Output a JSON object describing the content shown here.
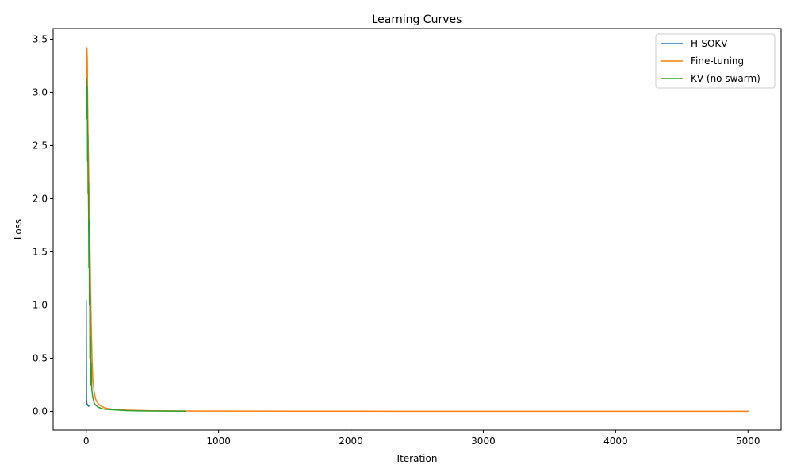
{
  "chart_data": {
    "type": "line",
    "title": "Learning Curves",
    "xlabel": "Iteration",
    "ylabel": "Loss",
    "xlim": [
      -250,
      5250
    ],
    "ylim": [
      -0.175,
      3.6
    ],
    "xticks": [
      0,
      1000,
      2000,
      3000,
      4000,
      5000
    ],
    "xtick_labels": [
      "0",
      "1000",
      "2000",
      "3000",
      "4000",
      "5000"
    ],
    "yticks": [
      0.0,
      0.5,
      1.0,
      1.5,
      2.0,
      2.5,
      3.0,
      3.5
    ],
    "ytick_labels": [
      "0.0",
      "0.5",
      "1.0",
      "1.5",
      "2.0",
      "2.5",
      "3.0",
      "3.5"
    ],
    "grid": false,
    "legend_position": "top-right",
    "series": [
      {
        "name": "H-SOKV",
        "color": "#1f77b4",
        "x": [
          0,
          2,
          4,
          6,
          8,
          10,
          12,
          14,
          16,
          18,
          20
        ],
        "y": [
          1.04,
          0.12,
          0.08,
          0.07,
          0.06,
          0.065,
          0.055,
          0.06,
          0.05,
          0.055,
          0.05
        ]
      },
      {
        "name": "Fine-tuning",
        "color": "#ff7f0e",
        "x": [
          0,
          5,
          8,
          10,
          14,
          18,
          22,
          26,
          30,
          35,
          40,
          45,
          50,
          60,
          70,
          80,
          100,
          120,
          150,
          200,
          300,
          500,
          750,
          1000,
          2000,
          3000,
          4000,
          5000
        ],
        "y": [
          2.8,
          3.42,
          3.3,
          3.0,
          2.6,
          2.3,
          2.0,
          1.7,
          1.4,
          1.0,
          0.7,
          0.45,
          0.3,
          0.18,
          0.12,
          0.09,
          0.06,
          0.045,
          0.03,
          0.02,
          0.012,
          0.006,
          0.004,
          0.003,
          0.002,
          0.001,
          0.001,
          0.001
        ]
      },
      {
        "name": "KV (no swarm)",
        "color": "#2ca02c",
        "x": [
          0,
          3,
          6,
          8,
          10,
          12,
          14,
          16,
          18,
          20,
          22,
          24,
          26,
          28,
          30,
          32,
          34,
          36,
          38,
          40,
          42,
          45,
          48,
          52,
          56,
          60,
          65,
          70,
          80,
          90,
          100,
          120,
          150,
          200,
          300,
          400,
          500,
          600,
          750
        ],
        "y": [
          2.9,
          3.13,
          2.75,
          3.05,
          2.35,
          2.6,
          2.05,
          2.15,
          1.8,
          1.35,
          1.8,
          1.0,
          1.45,
          0.5,
          1.1,
          0.4,
          0.7,
          0.25,
          0.45,
          0.3,
          0.2,
          0.18,
          0.14,
          0.12,
          0.1,
          0.08,
          0.07,
          0.06,
          0.05,
          0.04,
          0.035,
          0.025,
          0.02,
          0.015,
          0.008,
          0.005,
          0.004,
          0.003,
          0.002
        ]
      }
    ]
  }
}
